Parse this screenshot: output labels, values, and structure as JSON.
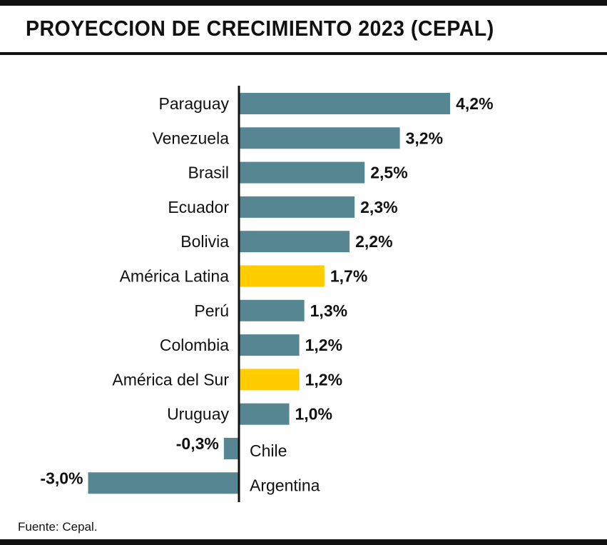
{
  "header": {
    "title": "PROYECCION DE CRECIMIENTO 2023 (CEPAL)"
  },
  "footer": {
    "source": "Fuente: Cepal."
  },
  "colors": {
    "country_bar": "#568692",
    "region_bar": "#ffcc00",
    "axis": "#111111"
  },
  "chart_data": {
    "type": "bar",
    "orientation": "horizontal",
    "title": "PROYECCION DE CRECIMIENTO 2023 (CEPAL)",
    "xlabel": "",
    "ylabel": "",
    "grid": false,
    "xlim": [
      -3.0,
      4.2
    ],
    "categories": [
      "Paraguay",
      "Venezuela",
      "Brasil",
      "Ecuador",
      "Bolivia",
      "América Latina",
      "Perú",
      "Colombia",
      "América del Sur",
      "Uruguay",
      "Chile",
      "Argentina"
    ],
    "values": [
      4.2,
      3.2,
      2.5,
      2.3,
      2.2,
      1.7,
      1.3,
      1.2,
      1.2,
      1.0,
      -0.3,
      -3.0
    ],
    "value_labels": [
      "4,2%",
      "3,2%",
      "2,5%",
      "2,3%",
      "2,2%",
      "1,7%",
      "1,3%",
      "1,2%",
      "1,2%",
      "1,0%",
      "-0,3%",
      "-3,0%"
    ],
    "highlighted": [
      "América Latina",
      "América del Sur"
    ]
  }
}
